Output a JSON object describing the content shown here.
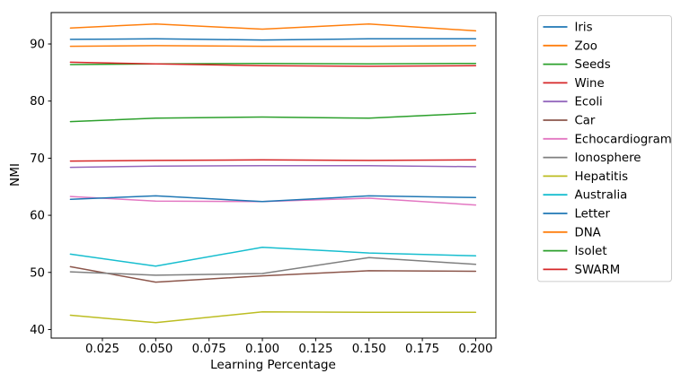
{
  "figure": {
    "background": "#ffffff",
    "plot_border_color": "#000000",
    "legend_border_color": "#cccccc"
  },
  "chart_data": {
    "type": "line",
    "title": "",
    "xlabel": "Learning Percentage",
    "ylabel": "NMI",
    "grid": false,
    "legend_position": "outside-right",
    "x": [
      0.01,
      0.05,
      0.1,
      0.15,
      0.2
    ],
    "xlim": [
      0.001,
      0.2095
    ],
    "ylim": [
      38.5,
      95.5
    ],
    "xticks": {
      "values": [
        0.025,
        0.05,
        0.075,
        0.1,
        0.125,
        0.15,
        0.175,
        0.2
      ],
      "labels": [
        "0.025",
        "0.050",
        "0.075",
        "0.100",
        "0.125",
        "0.150",
        "0.175",
        "0.200"
      ]
    },
    "yticks": {
      "values": [
        40,
        50,
        60,
        70,
        80,
        90
      ],
      "labels": [
        "40",
        "50",
        "60",
        "70",
        "80",
        "90"
      ]
    },
    "series": [
      {
        "name": "Iris",
        "color": "#1f77b4",
        "values": [
          90.8,
          90.9,
          90.7,
          90.9,
          90.9
        ]
      },
      {
        "name": "Zoo",
        "color": "#ff7f0e",
        "values": [
          92.8,
          93.5,
          92.6,
          93.5,
          92.3
        ]
      },
      {
        "name": "Seeds",
        "color": "#2ca02c",
        "values": [
          76.4,
          77.0,
          77.2,
          77.0,
          77.9
        ]
      },
      {
        "name": "Wine",
        "color": "#d62728",
        "values": [
          69.5,
          69.6,
          69.7,
          69.6,
          69.7
        ]
      },
      {
        "name": "Ecoli",
        "color": "#9467bd",
        "values": [
          68.4,
          68.6,
          68.7,
          68.7,
          68.5
        ]
      },
      {
        "name": "Car",
        "color": "#8c564b",
        "values": [
          51.0,
          48.3,
          49.4,
          50.3,
          50.2
        ]
      },
      {
        "name": "Echocardiogram",
        "color": "#e377c2",
        "values": [
          63.3,
          62.5,
          62.4,
          63.0,
          61.8
        ]
      },
      {
        "name": "Ionosphere",
        "color": "#7f7f7f",
        "values": [
          50.1,
          49.5,
          49.8,
          52.6,
          51.4
        ]
      },
      {
        "name": "Hepatitis",
        "color": "#bcbd22",
        "values": [
          42.5,
          41.2,
          43.1,
          43.0,
          43.0
        ]
      },
      {
        "name": "Australia",
        "color": "#17becf",
        "values": [
          53.2,
          51.1,
          54.4,
          53.4,
          52.9
        ]
      },
      {
        "name": "Letter",
        "color": "#1f77b4",
        "values": [
          62.8,
          63.4,
          62.4,
          63.4,
          63.1
        ]
      },
      {
        "name": "DNA",
        "color": "#ff7f0e",
        "values": [
          89.6,
          89.7,
          89.6,
          89.6,
          89.7
        ]
      },
      {
        "name": "Isolet",
        "color": "#2ca02c",
        "values": [
          86.4,
          86.5,
          86.6,
          86.5,
          86.6
        ]
      },
      {
        "name": "SWARM",
        "color": "#d62728",
        "values": [
          86.8,
          86.5,
          86.2,
          86.1,
          86.2
        ]
      }
    ]
  }
}
